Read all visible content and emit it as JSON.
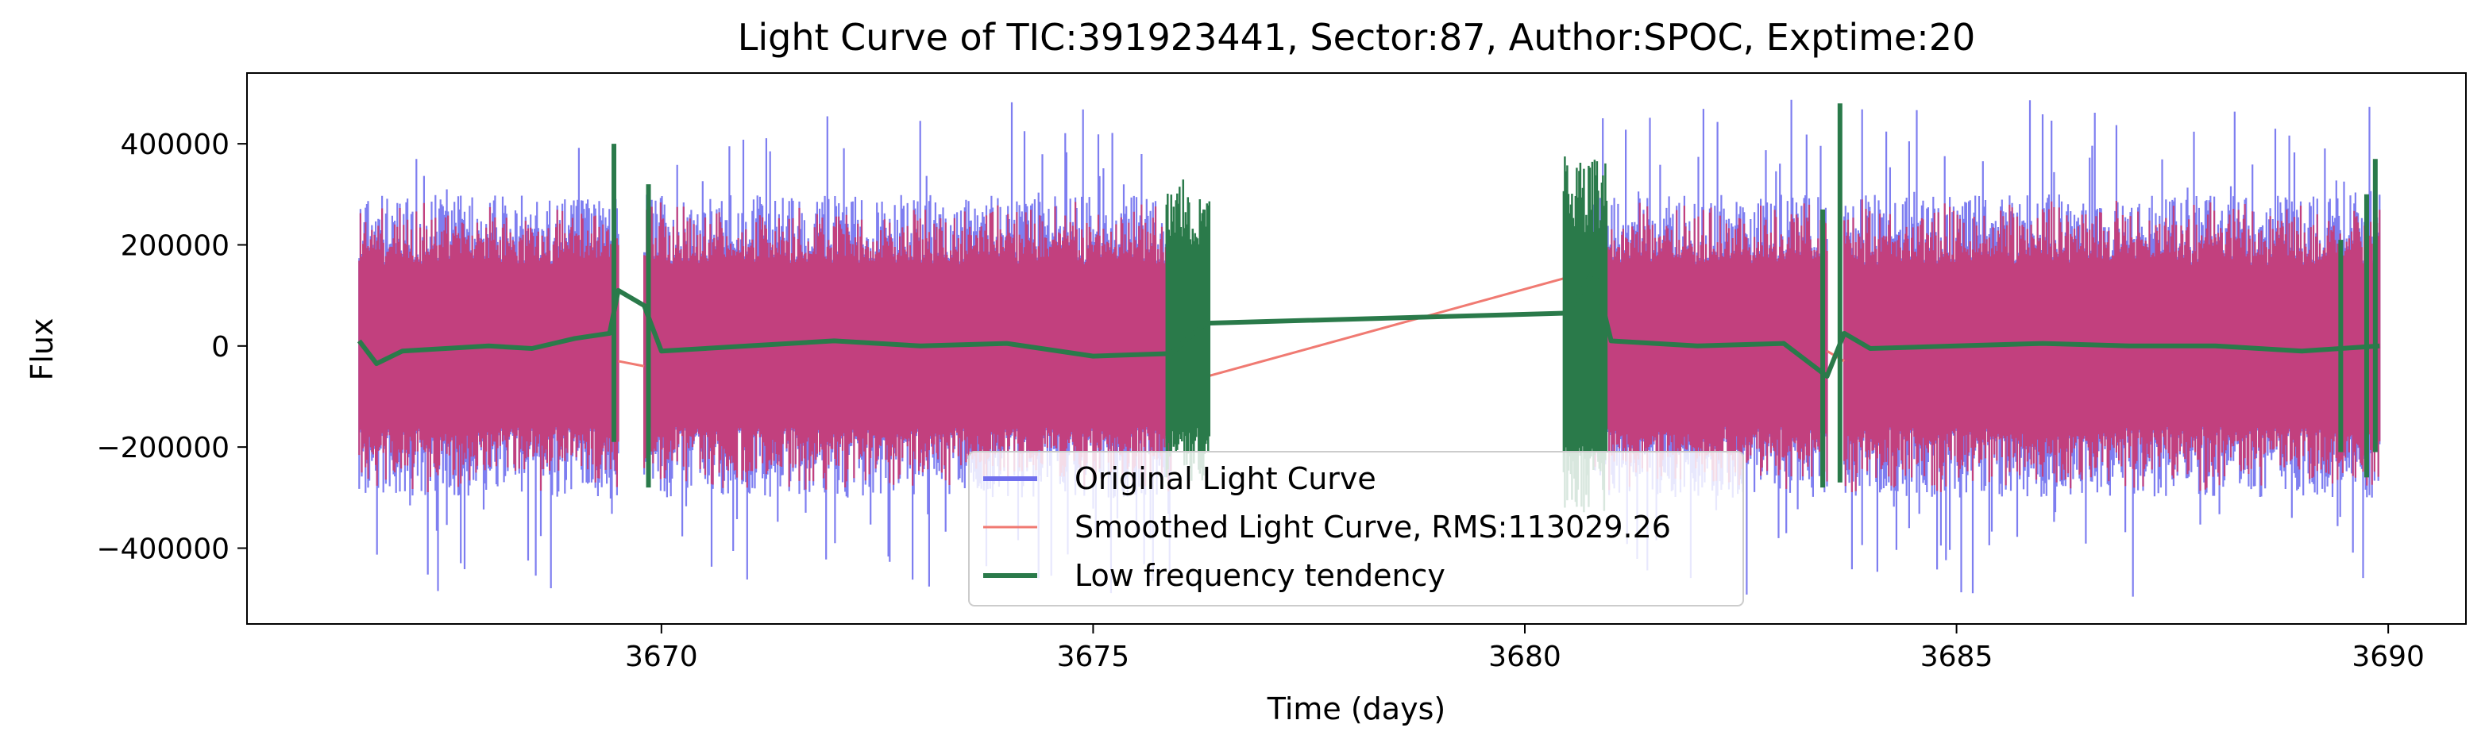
{
  "chart_data": {
    "type": "line",
    "title": "Light Curve of TIC:391923441, Sector:87, Author:SPOC, Exptime:20",
    "xlabel": "Time (days)",
    "ylabel": "Flux",
    "xlim": [
      3665.2,
      3690.9
    ],
    "ylim": [
      -550000,
      540000
    ],
    "x_ticks": [
      3670,
      3675,
      3680,
      3685,
      3690
    ],
    "x_tick_labels": [
      "3670",
      "3675",
      "3680",
      "3685",
      "3690"
    ],
    "y_ticks": [
      400000,
      200000,
      0,
      -200000,
      -400000
    ],
    "y_tick_labels": [
      "400000",
      "200000",
      "0",
      "−200000",
      "−400000"
    ],
    "grid": false,
    "legend_position": "lower center",
    "segments": [
      [
        3666.5,
        3669.5
      ],
      [
        3669.8,
        3675.9
      ],
      [
        3680.8,
        3683.5
      ],
      [
        3683.7,
        3689.9
      ]
    ],
    "series": [
      {
        "name": "Original Light Curve",
        "color": "#7070ee",
        "band_upper": 300000,
        "band_lower": -300000,
        "peak_max": 495000,
        "peak_min": -500000
      },
      {
        "name": "Smoothed Light Curve, RMS:113029.26",
        "color": "#f07a72",
        "band_upper": 290000,
        "band_lower": -290000,
        "bridge_points": [
          [
            3669.5,
            -30000
          ],
          [
            3669.8,
            -40000
          ],
          [
            3675.9,
            -80000
          ],
          [
            3680.8,
            150000
          ],
          [
            3683.5,
            -10000
          ],
          [
            3683.7,
            -30000
          ]
        ]
      },
      {
        "name": "Low frequency tendency",
        "color": "#2a7a4a",
        "points": [
          [
            3666.5,
            10000
          ],
          [
            3666.7,
            -35000
          ],
          [
            3667.0,
            -10000
          ],
          [
            3667.5,
            -5000
          ],
          [
            3668.0,
            0
          ],
          [
            3668.5,
            -5000
          ],
          [
            3669.0,
            15000
          ],
          [
            3669.4,
            25000
          ],
          [
            3669.5,
            110000
          ],
          [
            3669.8,
            80000
          ],
          [
            3670.0,
            -10000
          ],
          [
            3671.0,
            0
          ],
          [
            3672.0,
            10000
          ],
          [
            3673.0,
            0
          ],
          [
            3674.0,
            5000
          ],
          [
            3675.0,
            -20000
          ],
          [
            3675.9,
            -15000
          ],
          [
            3676.3,
            45000
          ],
          [
            3680.5,
            65000
          ],
          [
            3680.8,
            150000
          ],
          [
            3681.0,
            10000
          ],
          [
            3682.0,
            0
          ],
          [
            3683.0,
            5000
          ],
          [
            3683.5,
            -60000
          ],
          [
            3683.7,
            25000
          ],
          [
            3684.0,
            -5000
          ],
          [
            3685.0,
            0
          ],
          [
            3686.0,
            5000
          ],
          [
            3687.0,
            0
          ],
          [
            3688.0,
            0
          ],
          [
            3689.0,
            -10000
          ],
          [
            3689.9,
            0
          ]
        ],
        "spike_clusters": [
          {
            "x": [
              3675.85,
              3676.35
            ],
            "y": [
              -270000,
              330000
            ]
          },
          {
            "x": [
              3680.45,
              3680.95
            ],
            "y": [
              -330000,
              375000
            ]
          }
        ],
        "spikes": [
          [
            3669.45,
            -190000,
            400000
          ],
          [
            3669.85,
            -280000,
            320000
          ],
          [
            3683.45,
            -280000,
            270000
          ],
          [
            3683.65,
            -270000,
            480000
          ],
          [
            3689.45,
            -210000,
            210000
          ],
          [
            3689.75,
            -260000,
            300000
          ],
          [
            3689.85,
            -210000,
            370000
          ]
        ]
      }
    ]
  }
}
